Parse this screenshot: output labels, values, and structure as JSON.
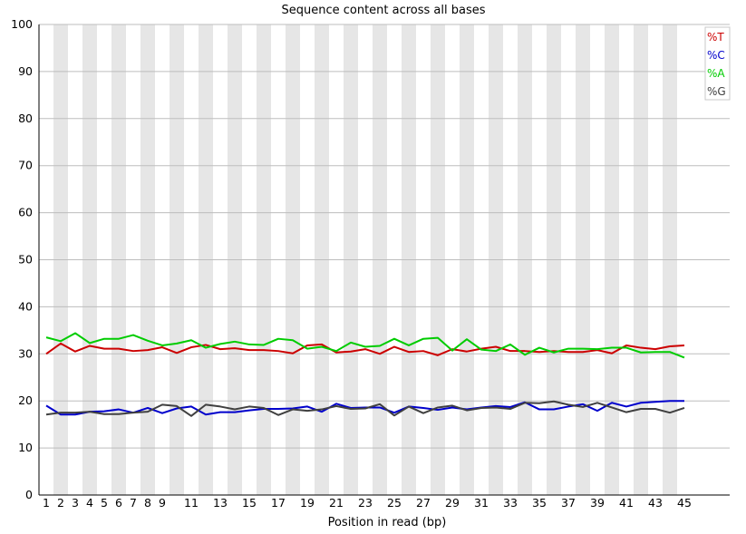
{
  "chart_data": {
    "type": "line",
    "title": "Sequence content across all bases",
    "xlabel": "Position in read (bp)",
    "ylabel": "",
    "ylim": [
      0,
      100
    ],
    "yticks": [
      "0",
      "10",
      "20",
      "30",
      "40",
      "50",
      "60",
      "70",
      "80",
      "90",
      "100"
    ],
    "x": [
      1,
      2,
      3,
      4,
      5,
      6,
      7,
      8,
      9,
      10,
      11,
      12,
      13,
      14,
      15,
      16,
      17,
      18,
      19,
      20,
      21,
      22,
      23,
      24,
      25,
      26,
      27,
      28,
      29,
      30,
      31,
      32,
      33,
      34,
      35,
      36,
      37,
      38,
      39,
      40,
      41,
      42,
      43,
      44,
      45
    ],
    "xtick_labels": [
      "1",
      "2",
      "3",
      "4",
      "5",
      "6",
      "7",
      "8",
      "9",
      "11",
      "13",
      "15",
      "17",
      "19",
      "21",
      "23",
      "25",
      "27",
      "29",
      "31",
      "33",
      "35",
      "37",
      "39",
      "41",
      "43",
      "45"
    ],
    "grid": "horizontal",
    "background": "alternating gray/white vertical bands per position",
    "legend_position": "top-right",
    "series": [
      {
        "name": "%T",
        "color": "#cc0000",
        "values": [
          30.0,
          32.2,
          30.5,
          31.7,
          31.1,
          31.1,
          30.6,
          30.8,
          31.4,
          30.2,
          31.4,
          31.9,
          31.0,
          31.2,
          30.8,
          30.8,
          30.6,
          30.1,
          31.8,
          32.0,
          30.3,
          30.5,
          31.0,
          30.0,
          31.5,
          30.4,
          30.6,
          29.7,
          31.0,
          30.5,
          31.1,
          31.5,
          30.6,
          30.6,
          30.4,
          30.6,
          30.4,
          30.4,
          30.8,
          30.1,
          31.8,
          31.3,
          31.0,
          31.6,
          31.8
        ]
      },
      {
        "name": "%C",
        "color": "#0000cc",
        "values": [
          19.0,
          17.1,
          17.1,
          17.7,
          17.8,
          18.2,
          17.5,
          18.5,
          17.4,
          18.4,
          18.8,
          17.1,
          17.6,
          17.6,
          18.0,
          18.3,
          18.3,
          18.4,
          18.8,
          17.7,
          19.4,
          18.5,
          18.6,
          18.6,
          17.5,
          18.8,
          18.5,
          18.1,
          18.6,
          18.2,
          18.6,
          18.9,
          18.7,
          19.7,
          18.2,
          18.2,
          18.8,
          19.3,
          17.9,
          19.6,
          18.8,
          19.6,
          19.8,
          20.0,
          20.0
        ]
      },
      {
        "name": "%A",
        "color": "#00cc00",
        "values": [
          33.5,
          32.7,
          34.4,
          32.3,
          33.2,
          33.2,
          34.0,
          32.8,
          31.8,
          32.2,
          32.9,
          31.3,
          32.1,
          32.6,
          32.0,
          31.9,
          33.2,
          32.9,
          31.1,
          31.5,
          30.6,
          32.4,
          31.5,
          31.7,
          33.2,
          31.8,
          33.2,
          33.4,
          30.7,
          33.1,
          30.9,
          30.6,
          32.0,
          29.8,
          31.3,
          30.3,
          31.1,
          31.1,
          31.0,
          31.3,
          31.3,
          30.3,
          30.4,
          30.4,
          29.2
        ]
      },
      {
        "name": "%G",
        "color": "#404040",
        "values": [
          17.1,
          17.5,
          17.5,
          17.7,
          17.2,
          17.2,
          17.5,
          17.7,
          19.2,
          18.9,
          16.8,
          19.2,
          18.8,
          18.2,
          18.8,
          18.5,
          17.0,
          18.2,
          17.9,
          18.2,
          18.9,
          18.3,
          18.4,
          19.3,
          16.9,
          18.8,
          17.4,
          18.6,
          19.0,
          18.0,
          18.5,
          18.6,
          18.3,
          19.6,
          19.5,
          19.9,
          19.2,
          18.7,
          19.6,
          18.6,
          17.6,
          18.3,
          18.3,
          17.5,
          18.5
        ]
      }
    ]
  }
}
